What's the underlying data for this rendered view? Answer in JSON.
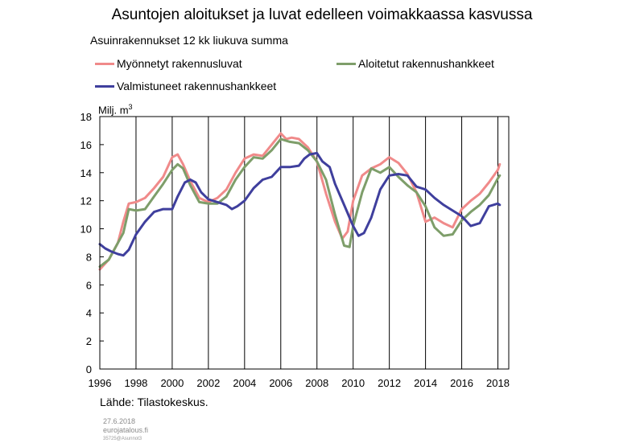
{
  "title": "Asuntojen aloitukset ja luvat edelleen voimakkaassa kasvussa",
  "subtitle": "Asuinrakennukset 12 kk liukuva summa",
  "source": "Lähde: Tilastokeskus.",
  "footer": {
    "date": "27.6.2018",
    "site": "eurojatalous.fi",
    "code": "35725@Asunnot3"
  },
  "chart_data": {
    "type": "line",
    "title": "Asuntojen aloitukset ja luvat edelleen voimakkaassa kasvussa",
    "subtitle": "Asuinrakennukset 12 kk liukuva summa",
    "ylabel": "Milj. m",
    "ylabel_sup": "3",
    "xlabel": "",
    "xlim": [
      1996,
      2018.6
    ],
    "ylim": [
      0,
      18
    ],
    "x_ticks": [
      "1996",
      "1998",
      "2000",
      "2002",
      "2004",
      "2006",
      "2008",
      "2010",
      "2012",
      "2014",
      "2016",
      "2018"
    ],
    "y_ticks": [
      "0",
      "2",
      "4",
      "6",
      "8",
      "10",
      "12",
      "14",
      "16",
      "18"
    ],
    "grid": "vertical",
    "legend_position": "top",
    "series": [
      {
        "name": "Myönnetyt rakennusluvat",
        "color": "#f08a8a",
        "x": [
          1996,
          1996.5,
          1997,
          1997.3,
          1997.6,
          1998,
          1998.5,
          1999,
          1999.5,
          2000,
          2000.3,
          2000.6,
          2001,
          2001.5,
          2002,
          2002.5,
          2003,
          2003.5,
          2004,
          2004.5,
          2005,
          2005.5,
          2006,
          2006.3,
          2006.6,
          2007,
          2007.5,
          2008,
          2008.5,
          2009,
          2009.4,
          2009.7,
          2010,
          2010.5,
          2011,
          2011.5,
          2012,
          2012.5,
          2013,
          2013.5,
          2014,
          2014.5,
          2015,
          2015.5,
          2016,
          2016.5,
          2017,
          2017.5,
          2018,
          2018.1
        ],
        "y": [
          7.1,
          7.8,
          9.0,
          10.5,
          11.8,
          11.9,
          12.2,
          12.9,
          13.7,
          15.1,
          15.3,
          14.6,
          13.4,
          12.2,
          11.9,
          12.2,
          12.8,
          14.0,
          15.0,
          15.3,
          15.2,
          16.0,
          16.8,
          16.4,
          16.5,
          16.4,
          15.8,
          14.8,
          12.5,
          10.5,
          9.3,
          9.8,
          12.0,
          13.8,
          14.3,
          14.6,
          15.1,
          14.7,
          13.9,
          12.6,
          10.5,
          10.8,
          10.4,
          10.1,
          11.4,
          12.0,
          12.5,
          13.3,
          14.2,
          14.6
        ]
      },
      {
        "name": "Aloitetut rakennushankkeet",
        "color": "#7e9e6a",
        "x": [
          1996,
          1996.5,
          1997,
          1997.3,
          1997.6,
          1998,
          1998.5,
          1999,
          1999.5,
          2000,
          2000.3,
          2000.6,
          2001,
          2001.5,
          2002,
          2002.5,
          2003,
          2003.5,
          2004,
          2004.5,
          2005,
          2005.5,
          2006,
          2006.5,
          2007,
          2007.5,
          2008,
          2008.5,
          2009,
          2009.5,
          2009.8,
          2010,
          2010.5,
          2011,
          2011.5,
          2012,
          2012.5,
          2013,
          2013.5,
          2014,
          2014.5,
          2015,
          2015.5,
          2016,
          2016.5,
          2017,
          2017.5,
          2018,
          2018.1
        ],
        "y": [
          7.3,
          7.8,
          9.0,
          9.7,
          11.4,
          11.3,
          11.4,
          12.3,
          13.2,
          14.2,
          14.6,
          14.3,
          13.1,
          11.9,
          11.8,
          11.8,
          12.3,
          13.5,
          14.4,
          15.1,
          15.0,
          15.6,
          16.4,
          16.2,
          16.1,
          15.6,
          14.8,
          13.5,
          11.0,
          8.8,
          8.7,
          10.2,
          12.6,
          14.3,
          14.0,
          14.4,
          13.7,
          13.1,
          12.6,
          11.6,
          10.1,
          9.5,
          9.6,
          10.6,
          11.2,
          11.7,
          12.4,
          13.6,
          13.8
        ]
      },
      {
        "name": "Valmistuneet rakennushankkeet",
        "color": "#3f3f9d",
        "x": [
          1996,
          1996.3,
          1996.6,
          1997,
          1997.3,
          1997.6,
          1998,
          1998.5,
          1999,
          1999.5,
          2000,
          2000.3,
          2000.7,
          2001,
          2001.3,
          2001.6,
          2002,
          2002.5,
          2003,
          2003.3,
          2003.6,
          2004,
          2004.5,
          2005,
          2005.5,
          2006,
          2006.5,
          2007,
          2007.3,
          2007.6,
          2008,
          2008.3,
          2008.7,
          2009,
          2009.5,
          2010,
          2010.3,
          2010.6,
          2011,
          2011.5,
          2012,
          2012.5,
          2013,
          2013.5,
          2014,
          2014.5,
          2015,
          2015.5,
          2016,
          2016.5,
          2017,
          2017.5,
          2018,
          2018.1
        ],
        "y": [
          8.9,
          8.6,
          8.4,
          8.2,
          8.1,
          8.5,
          9.6,
          10.5,
          11.2,
          11.4,
          11.4,
          12.3,
          13.3,
          13.5,
          13.3,
          12.6,
          12.1,
          11.9,
          11.7,
          11.4,
          11.6,
          12.0,
          12.9,
          13.5,
          13.7,
          14.4,
          14.4,
          14.5,
          15.0,
          15.3,
          15.4,
          14.8,
          14.4,
          13.2,
          11.7,
          10.2,
          9.5,
          9.7,
          10.8,
          12.8,
          13.8,
          13.9,
          13.8,
          13.0,
          12.8,
          12.2,
          11.7,
          11.3,
          10.9,
          10.2,
          10.4,
          11.6,
          11.8,
          11.7
        ]
      }
    ]
  }
}
